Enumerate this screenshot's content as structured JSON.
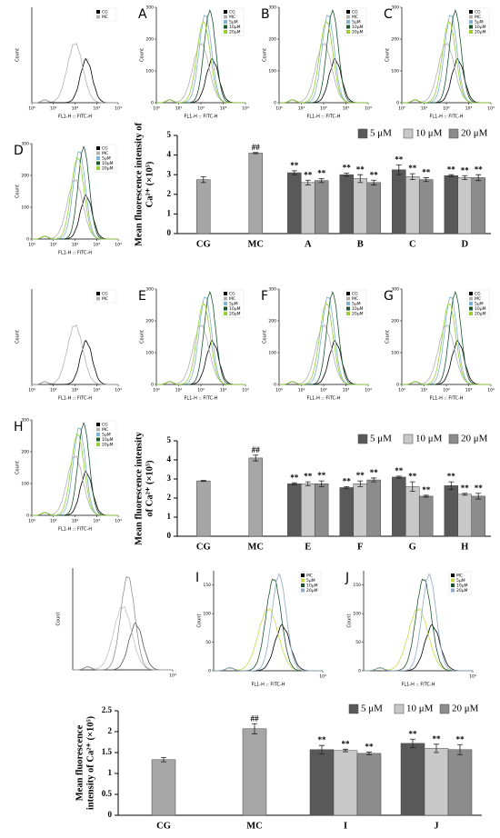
{
  "chart_data": [
    {
      "type": "flow-histogram",
      "xlabel": "FL1-H :: FITC-H",
      "ylabel": "Count",
      "xlim": [
        1,
        10000
      ],
      "xticks": [
        {
          "value": 1,
          "label": "10⁰"
        },
        {
          "value": 10,
          "label": "10¹"
        },
        {
          "value": 100,
          "label": "10²"
        },
        {
          "value": 1000,
          "label": "10³"
        },
        {
          "value": 10000,
          "label": "10⁴"
        }
      ],
      "series": [
        {
          "name": "CG",
          "color": "#000000"
        },
        {
          "name": "MC",
          "color": "#b0b0b0"
        }
      ]
    },
    {
      "type": "flow-histogram",
      "panel": "A",
      "xlabel": "FL1-H :: FITC-H",
      "ylabel": "Count",
      "ylim": [
        0,
        300
      ],
      "yticks": [
        0,
        100,
        200,
        300
      ],
      "xlim": [
        1,
        10000
      ],
      "xticks": [
        {
          "value": 1,
          "label": "10⁰"
        },
        {
          "value": 10,
          "label": "10¹"
        },
        {
          "value": 100,
          "label": "10²"
        },
        {
          "value": 1000,
          "label": "10³"
        },
        {
          "value": 10000,
          "label": "10⁴"
        }
      ],
      "series": [
        {
          "name": "CG",
          "color": "#000000"
        },
        {
          "name": "MC",
          "color": "#b0b0b0"
        },
        {
          "name": "5μM",
          "color": "#7fb3d5"
        },
        {
          "name": "10μM",
          "color": "#1e5631"
        },
        {
          "name": "20μM",
          "color": "#9acd32"
        }
      ]
    },
    {
      "type": "flow-histogram",
      "panel": "B",
      "xlabel": "FL1-H :: FITC-H",
      "ylabel": "Count",
      "ylim": [
        0,
        300
      ],
      "yticks": [
        0,
        100,
        200,
        300
      ],
      "xlim": [
        1,
        10000
      ],
      "xticks": [
        {
          "value": 1,
          "label": "10⁰"
        },
        {
          "value": 10,
          "label": "10¹"
        },
        {
          "value": 100,
          "label": "10²"
        },
        {
          "value": 1000,
          "label": "10³"
        },
        {
          "value": 10000,
          "label": "10⁴"
        }
      ],
      "series": [
        {
          "name": "CG",
          "color": "#000000"
        },
        {
          "name": "MC",
          "color": "#b0b0b0"
        },
        {
          "name": "5μM",
          "color": "#7fb3d5"
        },
        {
          "name": "10μM",
          "color": "#1e5631"
        },
        {
          "name": "20μM",
          "color": "#9acd32"
        }
      ]
    },
    {
      "type": "flow-histogram",
      "panel": "C",
      "xlabel": "FL1-H :: FITC-H",
      "ylabel": "Count",
      "ylim": [
        0,
        300
      ],
      "yticks": [
        0,
        100,
        200,
        300
      ],
      "xlim": [
        1,
        10000
      ],
      "xticks": [
        {
          "value": 1,
          "label": "10⁰"
        },
        {
          "value": 10,
          "label": "10¹"
        },
        {
          "value": 100,
          "label": "10²"
        },
        {
          "value": 1000,
          "label": "10³"
        },
        {
          "value": 10000,
          "label": "10⁴"
        }
      ],
      "series": [
        {
          "name": "CG",
          "color": "#000000"
        },
        {
          "name": "MC",
          "color": "#b0b0b0"
        },
        {
          "name": "5μM",
          "color": "#7fb3d5"
        },
        {
          "name": "10μM",
          "color": "#1e5631"
        },
        {
          "name": "20μM",
          "color": "#9acd32"
        }
      ]
    },
    {
      "type": "flow-histogram",
      "panel": "D",
      "xlabel": "FL1-H :: FITC-H",
      "ylabel": "Count",
      "ylim": [
        0,
        300
      ],
      "yticks": [
        0,
        100,
        200,
        300
      ],
      "xlim": [
        1,
        10000
      ],
      "xticks": [
        {
          "value": 1,
          "label": "10⁰"
        },
        {
          "value": 10,
          "label": "10¹"
        },
        {
          "value": 100,
          "label": "10²"
        },
        {
          "value": 1000,
          "label": "10³"
        },
        {
          "value": 10000,
          "label": "10⁴"
        }
      ],
      "series": [
        {
          "name": "CG",
          "color": "#000000"
        },
        {
          "name": "MC",
          "color": "#b0b0b0"
        },
        {
          "name": "5μM",
          "color": "#7fb3d5"
        },
        {
          "name": "10μM",
          "color": "#1e5631"
        },
        {
          "name": "20μM",
          "color": "#9acd32"
        }
      ]
    },
    {
      "type": "bar",
      "ylabel": [
        "Mean fluorescence intensity of",
        "Ca²⁺ (×10⁵)"
      ],
      "categories": [
        "CG",
        "MC",
        "A",
        "B",
        "C",
        "D"
      ],
      "ylim": [
        0,
        5
      ],
      "yticks": [
        0,
        1,
        2,
        3,
        4,
        5
      ],
      "legend": "top-right",
      "series": [
        {
          "color": "#a6a6a6",
          "values": [
            2.75,
            4.1,
            null,
            null,
            null,
            null
          ],
          "errors": [
            0.15,
            0.03,
            null,
            null,
            null,
            null
          ],
          "significance": [
            null,
            "##",
            null,
            null,
            null,
            null
          ]
        },
        {
          "name": "5 μM",
          "color": "#595959",
          "values": [
            null,
            null,
            3.1,
            3.0,
            3.25,
            2.95
          ],
          "errors": [
            null,
            null,
            0.1,
            0.08,
            0.25,
            0.05
          ],
          "significance": [
            null,
            null,
            "**",
            "**",
            "**",
            "**"
          ]
        },
        {
          "name": "10 μM",
          "color": "#c8c8c8",
          "values": [
            null,
            null,
            2.6,
            2.8,
            2.9,
            2.85
          ],
          "errors": [
            null,
            null,
            0.12,
            0.2,
            0.15,
            0.1
          ],
          "significance": [
            null,
            null,
            "**",
            "**",
            "**",
            "**"
          ]
        },
        {
          "name": "20 μM",
          "color": "#8c8c8c",
          "values": [
            null,
            null,
            2.7,
            2.6,
            2.75,
            2.85
          ],
          "errors": [
            null,
            null,
            0.1,
            0.12,
            0.1,
            0.15
          ],
          "significance": [
            null,
            null,
            "**",
            "**",
            "**",
            "**"
          ]
        }
      ]
    },
    {
      "type": "flow-histogram",
      "xlabel": "FL1-H :: FITC-H",
      "ylabel": "Count",
      "xlim": [
        1,
        10000
      ],
      "xticks": [
        {
          "value": 1,
          "label": "10⁰"
        },
        {
          "value": 10,
          "label": "10¹"
        },
        {
          "value": 100,
          "label": "10²"
        },
        {
          "value": 1000,
          "label": "10³"
        },
        {
          "value": 10000,
          "label": "10⁴"
        }
      ],
      "series": [
        {
          "name": "CG",
          "color": "#000000"
        },
        {
          "name": "MC",
          "color": "#b0b0b0"
        }
      ]
    },
    {
      "type": "flow-histogram",
      "panel": "E",
      "xlabel": "FL1-H :: FITC-H",
      "ylabel": "Count",
      "ylim": [
        0,
        300
      ],
      "yticks": [
        0,
        100,
        200,
        300
      ],
      "xlim": [
        1,
        10000
      ],
      "xticks": [
        {
          "value": 1,
          "label": "10⁰"
        },
        {
          "value": 10,
          "label": "10¹"
        },
        {
          "value": 100,
          "label": "10²"
        },
        {
          "value": 1000,
          "label": "10³"
        },
        {
          "value": 10000,
          "label": "10⁴"
        }
      ],
      "series": [
        {
          "name": "CG",
          "color": "#000000"
        },
        {
          "name": "MC",
          "color": "#b0b0b0"
        },
        {
          "name": "5μM",
          "color": "#7fb3d5"
        },
        {
          "name": "10μM",
          "color": "#1e5631"
        },
        {
          "name": "20μM",
          "color": "#9acd32"
        }
      ]
    },
    {
      "type": "flow-histogram",
      "panel": "F",
      "xlabel": "FL1-H :: FITC-H",
      "ylabel": "Count",
      "ylim": [
        0,
        300
      ],
      "yticks": [
        0,
        100,
        200,
        300
      ],
      "xlim": [
        1,
        10000
      ],
      "xticks": [
        {
          "value": 1,
          "label": "10⁰"
        },
        {
          "value": 10,
          "label": "10¹"
        },
        {
          "value": 100,
          "label": "10²"
        },
        {
          "value": 1000,
          "label": "10³"
        },
        {
          "value": 10000,
          "label": "10⁴"
        }
      ],
      "series": [
        {
          "name": "CG",
          "color": "#000000"
        },
        {
          "name": "MC",
          "color": "#b0b0b0"
        },
        {
          "name": "5μM",
          "color": "#7fb3d5"
        },
        {
          "name": "10μM",
          "color": "#1e5631"
        },
        {
          "name": "20μM",
          "color": "#9acd32"
        }
      ]
    },
    {
      "type": "flow-histogram",
      "panel": "G",
      "xlabel": "FL1-H :: FITC-H",
      "ylabel": "Count",
      "ylim": [
        0,
        300
      ],
      "yticks": [
        0,
        100,
        200,
        300
      ],
      "xlim": [
        1,
        10000
      ],
      "xticks": [
        {
          "value": 1,
          "label": "10⁰"
        },
        {
          "value": 10,
          "label": "10¹"
        },
        {
          "value": 100,
          "label": "10²"
        },
        {
          "value": 1000,
          "label": "10³"
        },
        {
          "value": 10000,
          "label": "10⁴"
        }
      ],
      "series": [
        {
          "name": "CG",
          "color": "#000000"
        },
        {
          "name": "MC",
          "color": "#b0b0b0"
        },
        {
          "name": "5μM",
          "color": "#7fb3d5"
        },
        {
          "name": "10μM",
          "color": "#1e5631"
        },
        {
          "name": "20μM",
          "color": "#9acd32"
        }
      ]
    },
    {
      "type": "flow-histogram",
      "panel": "H",
      "xlabel": "FL1-H :: FITC-H",
      "ylabel": "Count",
      "ylim": [
        0,
        300
      ],
      "yticks": [
        0,
        100,
        200,
        300
      ],
      "xlim": [
        1,
        10000
      ],
      "xticks": [
        {
          "value": 1,
          "label": "10⁰"
        },
        {
          "value": 10,
          "label": "10¹"
        },
        {
          "value": 100,
          "label": "10²"
        },
        {
          "value": 1000,
          "label": "10³"
        },
        {
          "value": 10000,
          "label": "10⁴"
        }
      ],
      "series": [
        {
          "name": "CG",
          "color": "#000000"
        },
        {
          "name": "MC",
          "color": "#b0b0b0"
        },
        {
          "name": "5μM",
          "color": "#7fb3d5"
        },
        {
          "name": "10μM",
          "color": "#1e5631"
        },
        {
          "name": "20μM",
          "color": "#9acd32"
        }
      ]
    },
    {
      "type": "bar",
      "ylabel": [
        "Mean fluorescence intensity",
        "of Ca²⁺ (×10⁵)"
      ],
      "categories": [
        "CG",
        "MC",
        "E",
        "F",
        "G",
        "H"
      ],
      "ylim": [
        0,
        5
      ],
      "yticks": [
        0,
        1,
        2,
        3,
        4,
        5
      ],
      "legend": "top-right",
      "series": [
        {
          "color": "#a6a6a6",
          "values": [
            2.9,
            4.1,
            null,
            null,
            null,
            null
          ],
          "errors": [
            0.03,
            0.15,
            null,
            null,
            null,
            null
          ],
          "significance": [
            null,
            "##",
            null,
            null,
            null,
            null
          ]
        },
        {
          "name": "5 μM",
          "color": "#595959",
          "values": [
            null,
            null,
            2.75,
            2.55,
            3.1,
            2.65
          ],
          "errors": [
            null,
            null,
            0.05,
            0.05,
            0.05,
            0.2
          ],
          "significance": [
            null,
            null,
            "**",
            "**",
            "**",
            "**"
          ]
        },
        {
          "name": "10 μM",
          "color": "#c8c8c8",
          "values": [
            null,
            null,
            2.75,
            2.75,
            2.6,
            2.2
          ],
          "errors": [
            null,
            null,
            0.1,
            0.15,
            0.25,
            0.05
          ],
          "significance": [
            null,
            null,
            "**",
            "**",
            "**",
            "**"
          ]
        },
        {
          "name": "20 μM",
          "color": "#8c8c8c",
          "values": [
            null,
            null,
            2.75,
            2.95,
            2.1,
            2.1
          ],
          "errors": [
            null,
            null,
            0.15,
            0.1,
            0.05,
            0.15
          ],
          "significance": [
            null,
            null,
            "**",
            "**",
            "**",
            "**"
          ]
        }
      ]
    },
    {
      "type": "flow-histogram",
      "ylabel": "Count",
      "xlim": [
        1,
        10000
      ],
      "xticks": [
        {
          "value": 10000,
          "label": "10⁴"
        }
      ],
      "series": [
        {
          "color": "#555555"
        },
        {
          "color": "#c0c0c0"
        },
        {
          "color": "#909090"
        }
      ]
    },
    {
      "type": "flow-histogram",
      "panel": "I",
      "xlabel": "FL1-H :: FITC-H",
      "ylabel": "Count",
      "ylim": [
        0,
        175
      ],
      "yticks": [
        0,
        50,
        100,
        150
      ],
      "xlim": [
        1,
        10000
      ],
      "xticks": [
        {
          "value": 10000,
          "label": "10⁴"
        }
      ],
      "series": [
        {
          "name": "MC",
          "color": "#000000"
        },
        {
          "name": "5μM",
          "color": "#c8d84a"
        },
        {
          "name": "10μM",
          "color": "#1e5631"
        },
        {
          "name": "20μM",
          "color": "#8fa8c8"
        }
      ]
    },
    {
      "type": "flow-histogram",
      "panel": "J",
      "xlabel": "FL1-H :: FITC-H",
      "ylabel": "Count",
      "ylim": [
        0,
        175
      ],
      "yticks": [
        0,
        50,
        100,
        150
      ],
      "xlim": [
        1,
        10000
      ],
      "xticks": [
        {
          "value": 10000,
          "label": "10⁴"
        }
      ],
      "series": [
        {
          "name": "MC",
          "color": "#000000"
        },
        {
          "name": "5μM",
          "color": "#c8d84a"
        },
        {
          "name": "10μM",
          "color": "#1e5631"
        },
        {
          "name": "20μM",
          "color": "#8fa8c8"
        }
      ]
    },
    {
      "type": "bar",
      "ylabel": [
        "Mean fluorescence",
        "intensity of Ca²⁺ (×10⁵)"
      ],
      "categories": [
        "CG",
        "MC",
        "I",
        "J"
      ],
      "ylim": [
        0,
        2.5
      ],
      "yticks": [
        0,
        0.5,
        1,
        1.5,
        2,
        2.5
      ],
      "legend": "top-right",
      "series": [
        {
          "color": "#a6a6a6",
          "values": [
            1.33,
            2.07,
            null,
            null
          ],
          "errors": [
            0.05,
            0.12,
            null,
            null
          ],
          "significance": [
            null,
            "##",
            null,
            null
          ]
        },
        {
          "name": "5 μM",
          "color": "#595959",
          "values": [
            null,
            null,
            1.57,
            1.72
          ],
          "errors": [
            null,
            null,
            0.1,
            0.1
          ],
          "significance": [
            null,
            null,
            "**",
            "**"
          ]
        },
        {
          "name": "10 μM",
          "color": "#c8c8c8",
          "values": [
            null,
            null,
            1.55,
            1.6
          ],
          "errors": [
            null,
            null,
            0.03,
            0.1
          ],
          "significance": [
            null,
            null,
            "**",
            "**"
          ]
        },
        {
          "name": "20 μM",
          "color": "#8c8c8c",
          "values": [
            null,
            null,
            1.48,
            1.57
          ],
          "errors": [
            null,
            null,
            0.03,
            0.12
          ],
          "significance": [
            null,
            null,
            "**",
            "**"
          ]
        }
      ]
    }
  ]
}
